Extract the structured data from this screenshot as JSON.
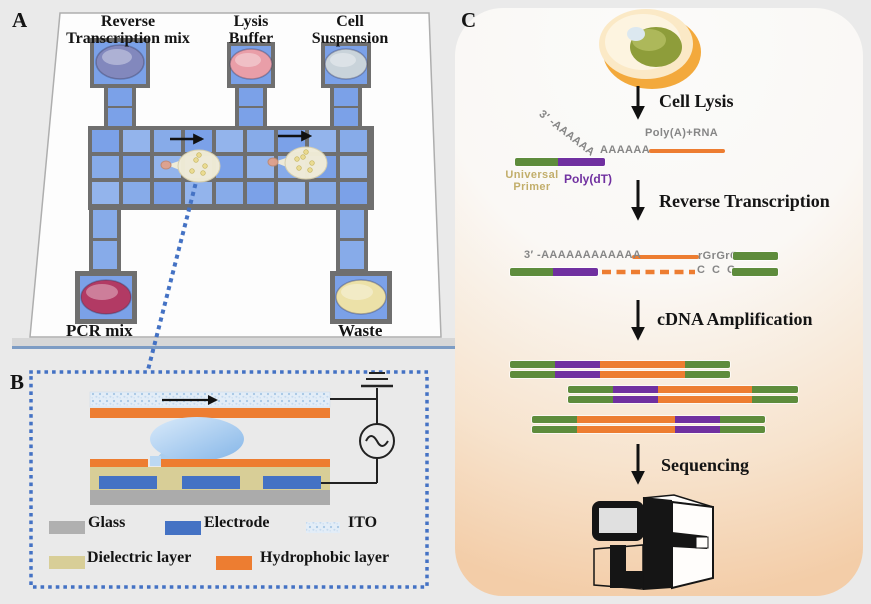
{
  "figure": {
    "background": "#eaeaea"
  },
  "panel_a": {
    "label": "A",
    "reservoirs": {
      "rt": {
        "label_line1": "Reverse",
        "label_line2": "Transcription mix",
        "color": "#8288bd"
      },
      "lysis": {
        "label_line1": "Lysis",
        "label_line2": "Buffer",
        "color": "#e99ea8"
      },
      "cells": {
        "label_line1": "Cell",
        "label_line2": "Suspension",
        "color": "#c9d3da"
      },
      "pcr": {
        "label": "PCR mix",
        "color": "#b23a64"
      },
      "waste": {
        "label": "Waste",
        "color": "#ece1a8"
      }
    },
    "chip": {
      "cell_color": "#7ba1e8",
      "grout_color": "#6f6f6f"
    }
  },
  "panel_b": {
    "label": "B",
    "legend": [
      {
        "name": "Glass",
        "color": "#b0b0b0"
      },
      {
        "name": "Electrode",
        "color": "#4472c4"
      },
      {
        "name": "ITO",
        "color": "#e3edf7"
      },
      {
        "name": "Dielectric layer",
        "color": "#d8ce97"
      },
      {
        "name": "Hydrophobic layer",
        "color": "#ed7d31"
      }
    ],
    "accent_dotted": "#4472c4"
  },
  "panel_c": {
    "label": "C",
    "steps": [
      "Cell Lysis",
      "Reverse Transcription",
      "cDNA Amplification",
      "Sequencing"
    ],
    "rna": {
      "seq_3prime": "3′ -AAAAAA",
      "seq_polyA_tail": "AAAAAA",
      "polyA_label": "Poly(A)+RNA",
      "universal_primer_line1": "Universal",
      "universal_primer_line2": "Primer",
      "poly_dt": "Poly(dT)",
      "universal_primer_color": "#c2ae6b",
      "poly_dt_color": "#7030a0",
      "seq_text_color": "#868686"
    },
    "cdna": {
      "top_seq": "3′ -AAAAAAAAAAAA",
      "rg_overhang": "rGrGrG",
      "c_overhang": "C C C"
    },
    "strand_colors": {
      "green": "#5e8c3c",
      "purple": "#7030a0",
      "orange": "#ed7d31"
    },
    "strands": {
      "primer": [
        [
          "green",
          43
        ],
        [
          "purple",
          47
        ]
      ],
      "cdna_top_right": [
        [
          "green",
          45
        ]
      ],
      "cdna_bottom_left": [
        [
          "green",
          43
        ],
        [
          "purple",
          45
        ]
      ],
      "cdna_bottom_right": [
        [
          "green",
          46
        ]
      ],
      "amplicon1": [
        [
          "green",
          45
        ],
        [
          "purple",
          45
        ],
        [
          "orange",
          85
        ],
        [
          "green",
          45
        ]
      ],
      "amplicon2": [
        [
          "green",
          45
        ],
        [
          "purple",
          45
        ],
        [
          "orange",
          94
        ],
        [
          "green",
          46
        ]
      ],
      "amplicon3": [
        [
          "green",
          45
        ],
        [
          "orange",
          98
        ],
        [
          "purple",
          45
        ],
        [
          "green",
          45
        ]
      ]
    }
  }
}
